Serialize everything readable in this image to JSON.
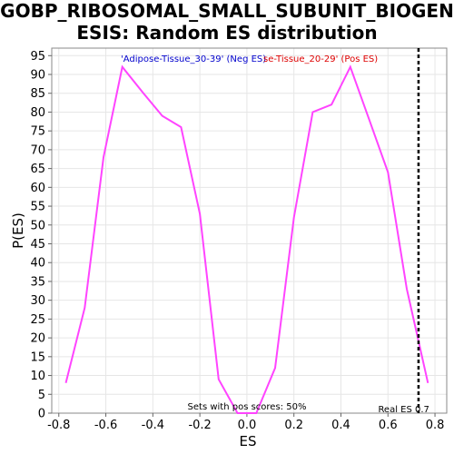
{
  "chart_data": {
    "type": "line",
    "title_lines": [
      "GOBP_RIBOSOMAL_SMALL_SUBUNIT_BIOGEN",
      "ESIS: Random ES distribution"
    ],
    "xlabel": "ES",
    "ylabel": "P(ES)",
    "xlim": [
      -0.83,
      0.85
    ],
    "ylim": [
      0,
      97
    ],
    "x_ticks": [
      -0.8,
      -0.6,
      -0.4,
      -0.2,
      0.0,
      0.2,
      0.4,
      0.6,
      0.8
    ],
    "x_tick_labels": [
      "-0.8",
      "-0.6",
      "-0.4",
      "-0.2",
      "0.0",
      "0.2",
      "0.4",
      "0.6",
      "0.8"
    ],
    "y_ticks": [
      0,
      5,
      10,
      15,
      20,
      25,
      30,
      35,
      40,
      45,
      50,
      55,
      60,
      65,
      70,
      75,
      80,
      85,
      90,
      95
    ],
    "y_tick_labels": [
      "0",
      "5",
      "10",
      "15",
      "20",
      "25",
      "30",
      "35",
      "40",
      "45",
      "50",
      "55",
      "60",
      "65",
      "70",
      "75",
      "80",
      "85",
      "90",
      "95"
    ],
    "grid": true,
    "series": [
      {
        "color": "#ff44ff",
        "x": [
          -0.77,
          -0.69,
          -0.61,
          -0.53,
          -0.44,
          -0.36,
          -0.28,
          -0.2,
          -0.12,
          -0.04,
          0.04,
          0.12,
          0.2,
          0.28,
          0.36,
          0.44,
          0.52,
          0.6,
          0.68,
          0.77
        ],
        "y": [
          8,
          28,
          68,
          92,
          85,
          79,
          76,
          53,
          9,
          0,
          0,
          12,
          52,
          80,
          82,
          92,
          78,
          64,
          33,
          8
        ]
      }
    ],
    "reference_line": {
      "x": 0.73,
      "label": "Real ES 0.7",
      "color": "#000000"
    },
    "legend": {
      "placement": "top",
      "neg_label": "'Adipose-Tissue_30-39' (Neg ES)",
      "neg_color": "#0000cc",
      "pos_label": "se-Tissue_20-29' (Pos ES)",
      "pos_color": "#dd0000"
    },
    "annotation": "Sets with pos scores: 50%"
  }
}
